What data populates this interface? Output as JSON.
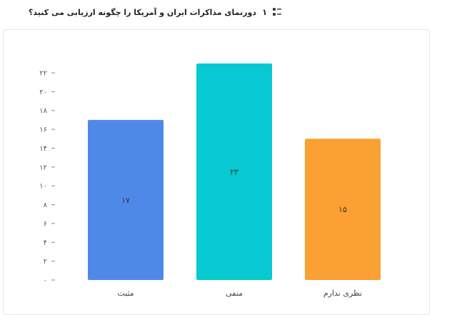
{
  "question": {
    "number": "۱",
    "title": "دورنمای مذاکرات ایران و آمریکا را چگونه ارزیابی می کنید؟",
    "icon": "list-order-icon"
  },
  "colors": {
    "positive": "#4f89e8",
    "negative": "#06c9d1",
    "no_opinion": "#fba033"
  },
  "chart_data": {
    "type": "bar",
    "categories": [
      "مثبت",
      "منفی",
      "نظری ندارم"
    ],
    "values": [
      17,
      23,
      15
    ],
    "value_labels": [
      "۱۷",
      "۲۳",
      "۱۵"
    ],
    "ylim": [
      0,
      22
    ],
    "yticks": [
      0,
      2,
      4,
      6,
      8,
      10,
      12,
      14,
      16,
      18,
      20,
      22
    ],
    "ytick_labels": [
      "۰",
      "۲",
      "۴",
      "۶",
      "۸",
      "۱۰",
      "۱۲",
      "۱۴",
      "۱۶",
      "۱۸",
      "۲۰",
      "۲۲"
    ],
    "title": "",
    "xlabel": "",
    "ylabel": "",
    "grid": false
  }
}
